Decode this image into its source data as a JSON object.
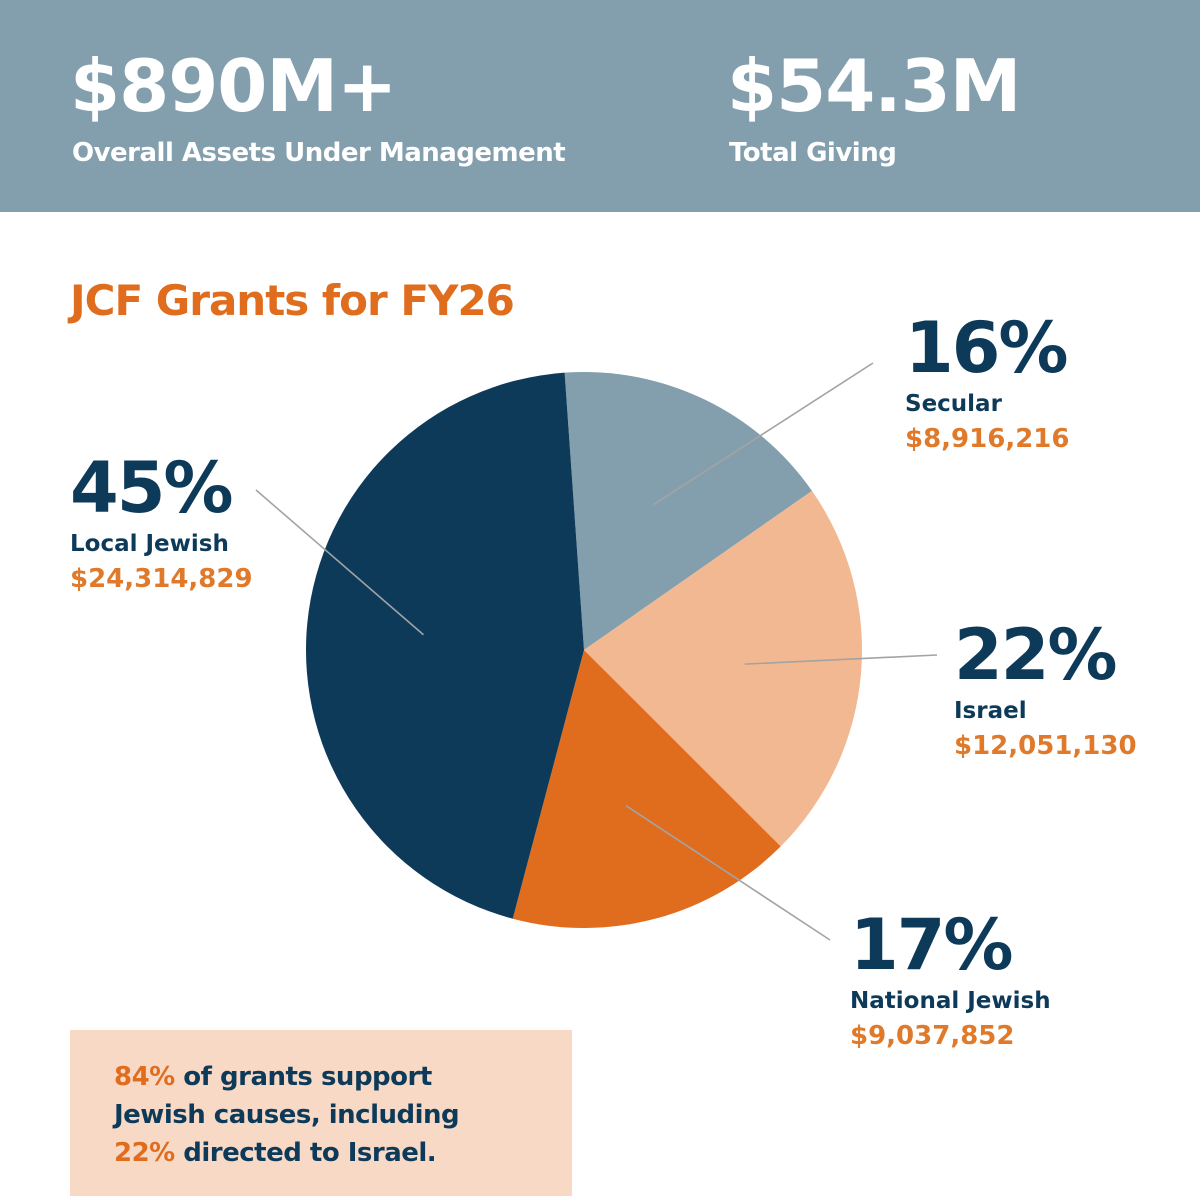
{
  "header": {
    "stats": [
      {
        "value": "$890M+",
        "label": "Overall Assets Under Management"
      },
      {
        "value": "$54.3M",
        "label": "Total Giving"
      }
    ]
  },
  "colors": {
    "banner": "#839fae",
    "navy": "#0e3a5a",
    "orange": "#e06d1e",
    "orange_text": "#e07a2a",
    "peach": "#f2b891",
    "slate": "#839fae",
    "note_bg": "#f8d9c6"
  },
  "chart_data": {
    "type": "pie",
    "title": "JCF Grants for FY26",
    "legend": "callouts",
    "slices": [
      {
        "name": "Secular",
        "percent_label": "16%",
        "amount": "$8,916,216",
        "value": 8916216,
        "color": "#839fae"
      },
      {
        "name": "Israel",
        "percent_label": "22%",
        "amount": "$12,051,130",
        "value": 12051130,
        "color": "#f2b891"
      },
      {
        "name": "National Jewish",
        "percent_label": "17%",
        "amount": "$9,037,852",
        "value": 9037852,
        "color": "#e06d1e"
      },
      {
        "name": "Local Jewish",
        "percent_label": "45%",
        "amount": "$24,314,829",
        "value": 24314829,
        "color": "#0e3a5a"
      }
    ]
  },
  "note": {
    "line1_accent": "84%",
    "line1_rest": " of grants support",
    "line2": "Jewish causes, including",
    "line3_accent": "22%",
    "line3_rest": " directed to Israel."
  }
}
